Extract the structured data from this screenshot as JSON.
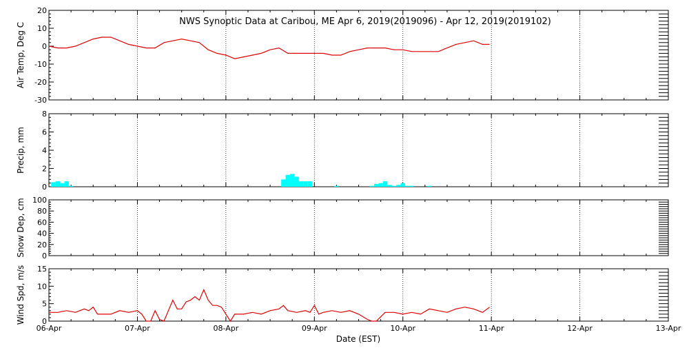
{
  "title": "NWS Synoptic Data at Caribou, ME   Apr  6, 2019(2019096) - Apr 12, 2019(2019102)",
  "xlabel": "Date (EST)",
  "x_ticks": [
    "06-Apr",
    "07-Apr",
    "08-Apr",
    "09-Apr",
    "10-Apr",
    "11-Apr",
    "12-Apr",
    "13-Apr"
  ],
  "colors": {
    "temperature": "#e00000",
    "precip": "#00ffff",
    "wind": "#e00000",
    "frame": "#000000"
  },
  "chart_data": [
    {
      "type": "line",
      "ylabel": "Air Temp, Deg C",
      "ylim": [
        -30,
        20
      ],
      "y_ticks": [
        "20",
        "10",
        "0",
        "-10",
        "-20",
        "-30"
      ],
      "grid": true,
      "x_range_days": [
        0,
        7
      ],
      "series": [
        {
          "x": [
            0,
            0.1,
            0.2,
            0.3,
            0.4,
            0.5,
            0.6,
            0.7,
            0.8,
            0.9,
            1.0,
            1.1,
            1.2,
            1.3,
            1.4,
            1.5,
            1.6,
            1.7,
            1.8,
            1.9,
            2.0,
            2.1,
            2.2,
            2.3,
            2.4,
            2.5,
            2.6,
            2.7,
            2.8,
            2.9,
            3.0,
            3.1,
            3.2,
            3.3,
            3.4,
            3.5,
            3.6,
            3.7,
            3.8,
            3.9,
            4.0,
            4.1,
            4.2,
            4.3,
            4.4,
            4.5,
            4.6,
            4.7,
            4.8,
            4.9,
            4.98
          ],
          "values": [
            0,
            -1,
            -1,
            0,
            2,
            4,
            5,
            5,
            3,
            1,
            0,
            -1,
            -1,
            2,
            3,
            4,
            3,
            2,
            -2,
            -4,
            -5,
            -7,
            -6,
            -5,
            -4,
            -2,
            -1,
            -4,
            -4,
            -4,
            -4,
            -4,
            -5,
            -5,
            -3,
            -2,
            -1,
            -1,
            -1,
            -2,
            -2,
            -3,
            -3,
            -3,
            -3,
            -1,
            1,
            2,
            3,
            1,
            1
          ]
        }
      ]
    },
    {
      "type": "bar",
      "ylabel": "Precip, mm",
      "ylim": [
        0,
        8
      ],
      "y_ticks": [
        "8",
        "6",
        "4",
        "2",
        "0"
      ],
      "grid": true,
      "bar_width_days": 0.05,
      "series": [
        {
          "x": [
            0.05,
            0.1,
            0.15,
            0.2,
            0.25,
            2.65,
            2.7,
            2.75,
            2.8,
            2.85,
            2.9,
            2.95,
            3.25,
            3.65,
            3.7,
            3.75,
            3.8,
            3.85,
            3.9,
            3.95,
            4.0,
            4.05,
            4.1,
            4.3
          ],
          "values": [
            0.5,
            0.6,
            0.4,
            0.6,
            0.1,
            0.8,
            1.3,
            1.4,
            1.1,
            0.6,
            0.6,
            0.6,
            0.1,
            0.1,
            0.3,
            0.4,
            0.6,
            0.2,
            0.1,
            0.2,
            0.4,
            0.1,
            0.1,
            0.1
          ]
        }
      ]
    },
    {
      "type": "line",
      "ylabel": "Snow Dep, cm",
      "ylim": [
        0,
        100
      ],
      "y_ticks": [
        "100",
        "80",
        "60",
        "40",
        "20",
        "0"
      ],
      "grid": true,
      "series": []
    },
    {
      "type": "line",
      "ylabel": "Wind Spd, m/s",
      "ylim": [
        0,
        15
      ],
      "y_ticks": [
        "15",
        "10",
        "5",
        "0"
      ],
      "grid": true,
      "series": [
        {
          "x": [
            0,
            0.1,
            0.2,
            0.3,
            0.4,
            0.45,
            0.5,
            0.55,
            0.6,
            0.7,
            0.8,
            0.9,
            1.0,
            1.05,
            1.1,
            1.15,
            1.2,
            1.25,
            1.3,
            1.35,
            1.4,
            1.45,
            1.5,
            1.55,
            1.6,
            1.65,
            1.7,
            1.75,
            1.8,
            1.85,
            1.9,
            1.95,
            2.0,
            2.05,
            2.1,
            2.2,
            2.3,
            2.4,
            2.5,
            2.6,
            2.65,
            2.7,
            2.8,
            2.9,
            2.95,
            3.0,
            3.05,
            3.1,
            3.2,
            3.3,
            3.4,
            3.5,
            3.6,
            3.65,
            3.7,
            3.8,
            3.9,
            4.0,
            4.1,
            4.2,
            4.3,
            4.4,
            4.5,
            4.6,
            4.7,
            4.8,
            4.9,
            4.98
          ],
          "values": [
            2.5,
            2.5,
            3,
            2.5,
            3.5,
            3,
            4,
            2,
            2,
            2,
            3,
            2.5,
            3,
            2,
            0,
            0,
            3,
            0.5,
            0,
            3,
            6,
            3.5,
            3.5,
            5.5,
            6,
            7,
            6,
            9,
            6,
            4.5,
            4.5,
            4,
            2,
            0,
            2,
            2,
            2.5,
            2,
            3,
            3.5,
            4.5,
            3,
            2.5,
            3,
            2.5,
            4.5,
            2,
            2.5,
            3,
            2.5,
            3,
            2,
            0.5,
            0,
            0,
            2.5,
            2.5,
            2,
            2.5,
            2,
            3.5,
            3,
            2.5,
            3.5,
            4,
            3.5,
            2.5,
            4
          ]
        }
      ]
    }
  ]
}
